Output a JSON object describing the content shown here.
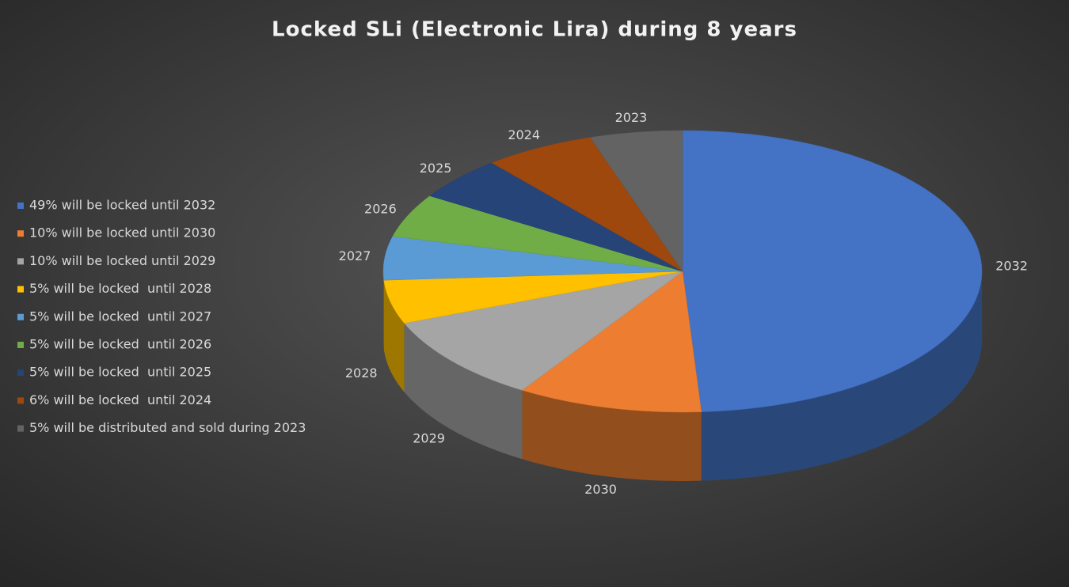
{
  "chart_data": {
    "type": "pie3d",
    "title": "Locked SLi (Electronic Lira) during 8 years",
    "categories": [
      "2032",
      "2030",
      "2029",
      "2028",
      "2027",
      "2026",
      "2025",
      "2024",
      "2023"
    ],
    "values": [
      49,
      10,
      10,
      5,
      5,
      5,
      5,
      6,
      5
    ],
    "colors": [
      "#4472c4",
      "#ed7d31",
      "#a5a5a5",
      "#ffc000",
      "#5b9bd5",
      "#70ad47",
      "#264478",
      "#9e480e",
      "#636363"
    ],
    "legend_labels": [
      "49% will be locked until 2032",
      "10% will be locked until 2030",
      "10% will be locked until 2029",
      "5% will be locked  until 2028",
      "5% will be locked  until 2027",
      "5% will be locked  until 2026",
      "5% will be locked  until 2025",
      "6% will be locked  until 2024",
      "5% will be distributed and sold during 2023"
    ],
    "legend_position": "left"
  }
}
